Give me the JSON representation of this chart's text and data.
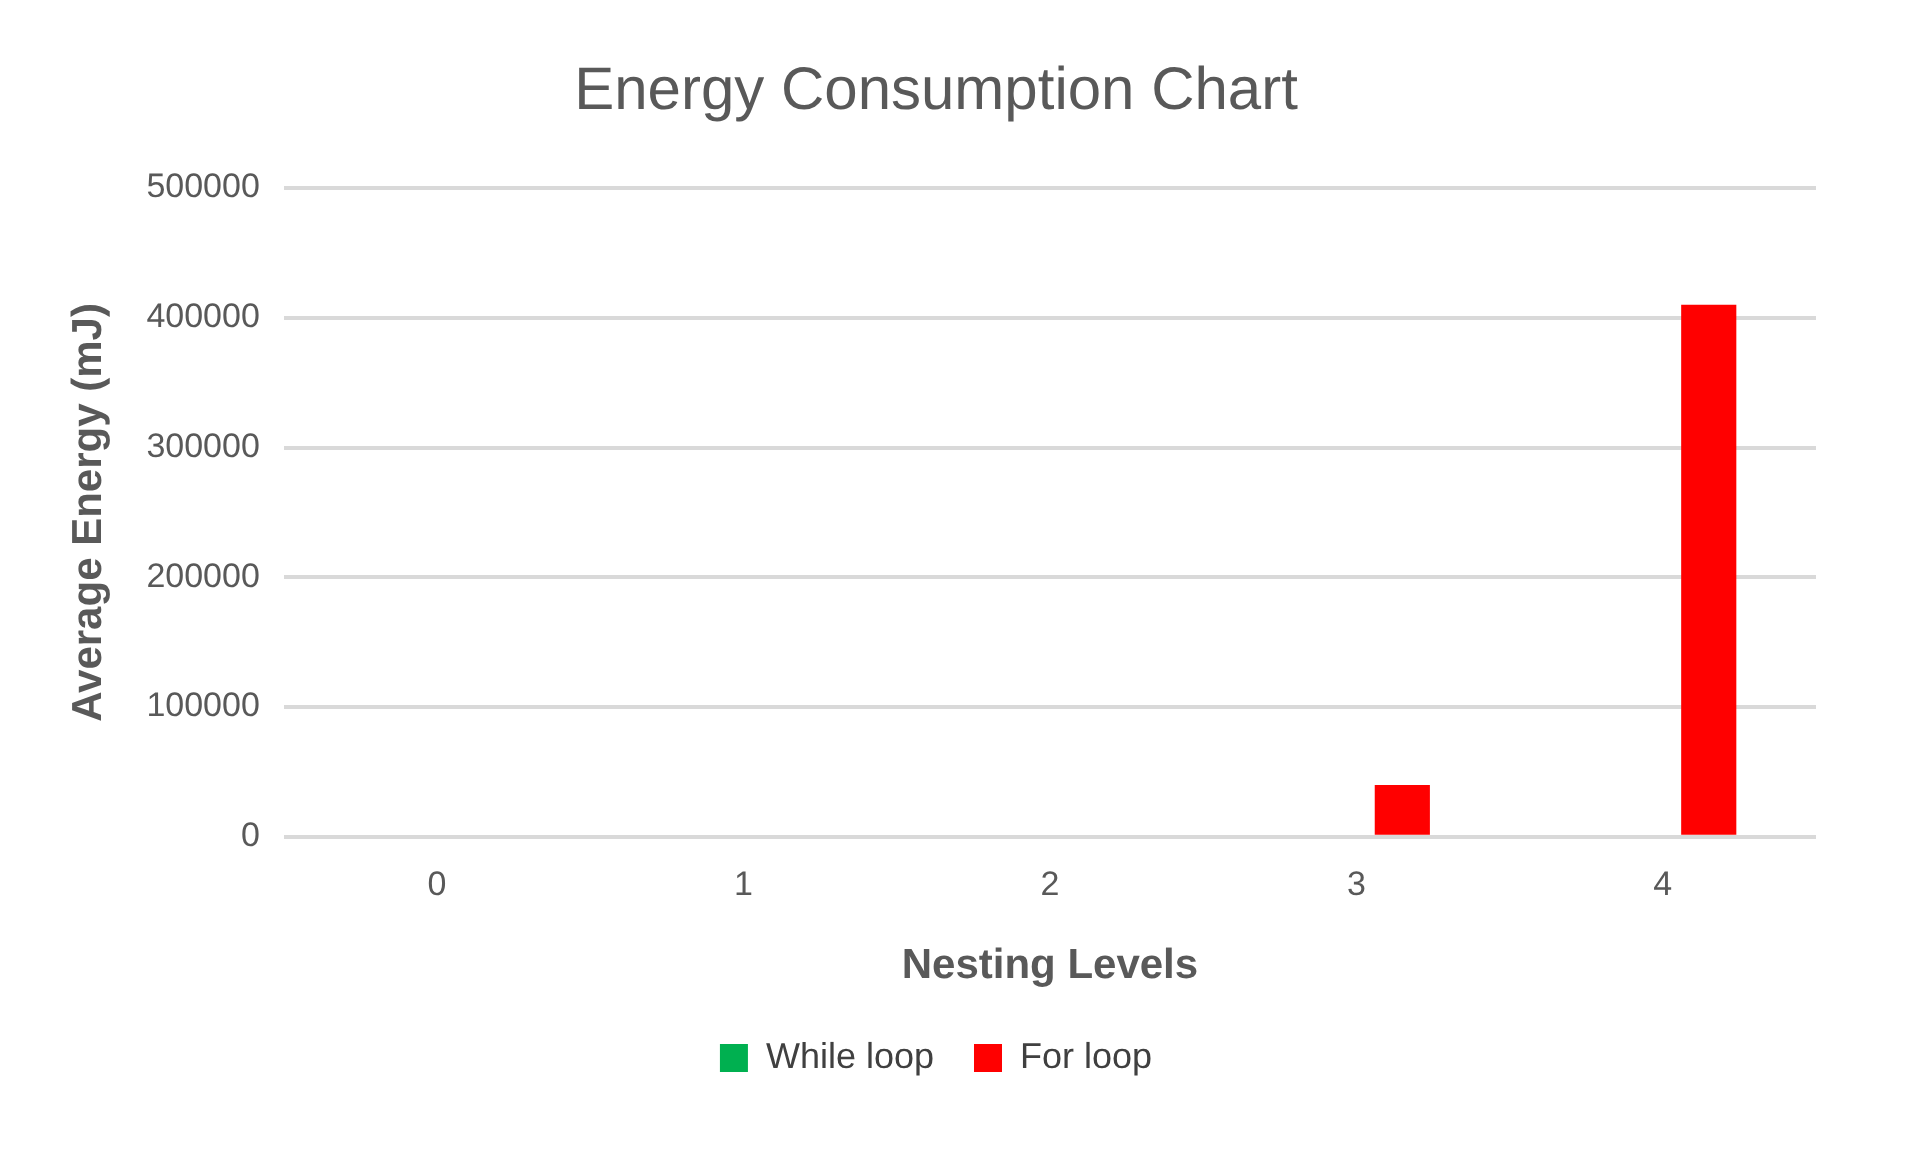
{
  "chart_data": {
    "type": "bar",
    "title": "Energy Consumption Chart",
    "xlabel": "Nesting Levels",
    "ylabel": "Average Energy (mJ)",
    "categories": [
      "0",
      "1",
      "2",
      "3",
      "4"
    ],
    "series": [
      {
        "name": "While loop",
        "color": "#00b050",
        "values": [
          0,
          0,
          0,
          0,
          0
        ]
      },
      {
        "name": "For loop",
        "color": "#ff0000",
        "values": [
          0,
          0,
          0,
          40000,
          410000
        ]
      }
    ],
    "ylim": [
      0,
      500000
    ],
    "yticks": [
      0,
      100000,
      200000,
      300000,
      400000,
      500000
    ],
    "grid": "y",
    "legend": "bottom"
  }
}
